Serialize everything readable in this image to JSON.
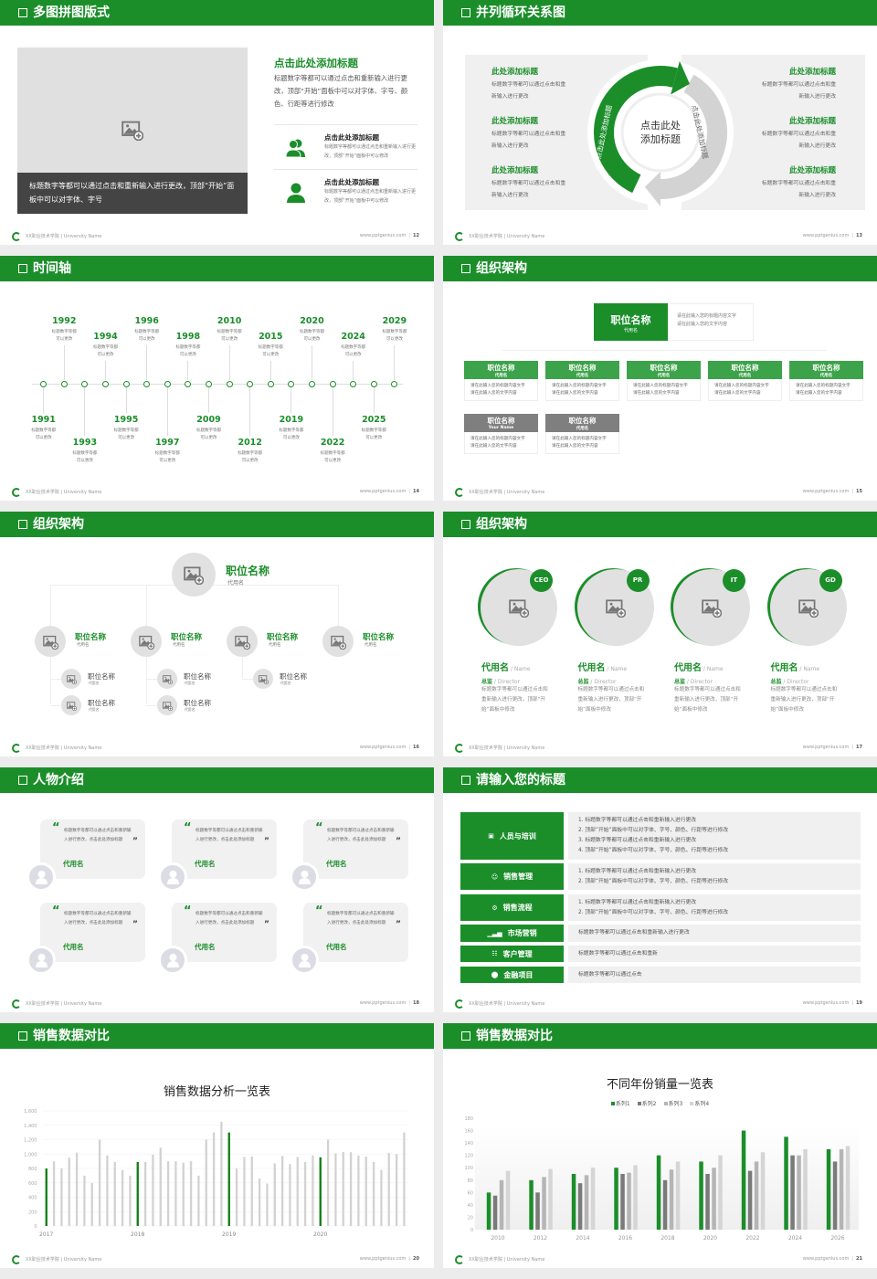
{
  "footer": {
    "school": "XX职业技术学院 | University Name",
    "site": "www.pptgenius.com"
  },
  "colors": {
    "brand_green": "#1b8e2a",
    "gray_dark": "#7a7a7a",
    "gray_mid": "#b5b5b5",
    "gray_light": "#d5d5d5"
  },
  "slides": [
    {
      "title": "多图拼图版式",
      "page": "12",
      "caption": "标题数字等都可以通过点击和重新输入进行更改，顶部“开始”面板中可以对字体、字号",
      "heading": "点击此处添加标题",
      "body": "标题数字等都可以通过点击和重新输入进行更改，顶部“开始”面板中可以对字体、字号、颜色、行距等进行修改",
      "items": [
        {
          "icon": "users-icon",
          "title": "点击此处添加标题",
          "text": "标题数字等都可以通过点击和重新输入进行更改，顶部“开始”面板中可以修改"
        },
        {
          "icon": "user-icon",
          "title": "点击此处添加标题",
          "text": "标题数字等都可以通过点击和重新输入进行更改，顶部“开始”面板中可以修改"
        }
      ]
    },
    {
      "title": "并列循环关系图",
      "page": "13",
      "center": "点击此处\n添加标题",
      "arc_left": "点击此处添加标题",
      "arc_right": "点击此处添加标题",
      "left": [
        {
          "title": "此处添加标题",
          "text": "标题数字等都可以通过点击和重\n新输入进行更改"
        },
        {
          "title": "此处添加标题",
          "text": "标题数字等都可以通过点击和重\n新输入进行更改"
        },
        {
          "title": "此处添加标题",
          "text": "标题数字等都可以通过点击和重\n新输入进行更改"
        }
      ],
      "right": [
        {
          "title": "此处添加标题",
          "text": "标题数字等都可以通过点击和重\n新输入进行更改"
        },
        {
          "title": "此处添加标题",
          "text": "标题数字等都可以通过点击和重\n新输入进行更改"
        },
        {
          "title": "此处添加标题",
          "text": "标题数字等都可以通过点击和重\n新输入进行更改"
        }
      ]
    },
    {
      "title": "时间轴",
      "page": "14",
      "events": [
        {
          "year": "1991",
          "text": "标题数字等都\n可以更改"
        },
        {
          "year": "1992",
          "text": "标题数字等都\n可以更改"
        },
        {
          "year": "1993",
          "text": "标题数字等都\n可以更改"
        },
        {
          "year": "1994",
          "text": "标题数字等都\n可以更改"
        },
        {
          "year": "1995",
          "text": "标题数字等都\n可以更改"
        },
        {
          "year": "1996",
          "text": "标题数字等都\n可以更改"
        },
        {
          "year": "1997",
          "text": "标题数字等都\n可以更改"
        },
        {
          "year": "1998",
          "text": "标题数字等都\n可以更改"
        },
        {
          "year": "2009",
          "text": "标题数字等都\n可以更改"
        },
        {
          "year": "2010",
          "text": "标题数字等都\n可以更改"
        },
        {
          "year": "2012",
          "text": "标题数字等都\n可以更改"
        },
        {
          "year": "2015",
          "text": "标题数字等都\n可以更改"
        },
        {
          "year": "2019",
          "text": "标题数字等都\n可以更改"
        },
        {
          "year": "2020",
          "text": "标题数字等都\n可以更改"
        },
        {
          "year": "2022",
          "text": "标题数字等都\n可以更改"
        },
        {
          "year": "2024",
          "text": "标题数字等都\n可以更改"
        },
        {
          "year": "2025",
          "text": "标题数字等都\n可以更改"
        },
        {
          "year": "2029",
          "text": "标题数字等都\n可以更改"
        }
      ]
    },
    {
      "title": "组织架构",
      "page": "15",
      "top": {
        "title": "职位名称",
        "sub": "代用名",
        "desc": "请在此输入您的标题内容文字\n请在此输入您的文字内容"
      },
      "row1": [
        {
          "title": "职位名称",
          "sub": "代用名",
          "desc": "请在此输入您的标题内容文字\n请在此输入您的文字内容"
        },
        {
          "title": "职位名称",
          "sub": "代用名",
          "desc": "请在此输入您的标题内容文字\n请在此输入您的文字内容"
        },
        {
          "title": "职位名称",
          "sub": "代用名",
          "desc": "请在此输入您的标题内容文字\n请在此输入您的文字内容"
        },
        {
          "title": "职位名称",
          "sub": "代用名",
          "desc": "请在此输入您的标题内容文字\n请在此输入您的文字内容"
        },
        {
          "title": "职位名称",
          "sub": "代用名",
          "desc": "请在此输入您的标题内容文字\n请在此输入您的文字内容"
        }
      ],
      "row2": [
        {
          "title": "职位名称",
          "sub": "Your Name",
          "desc": "请在此输入您的标题内容文字\n请在此输入您的文字内容"
        },
        {
          "title": "职位名称",
          "sub": "代用名",
          "desc": "请在此输入您的标题内容文字\n请在此输入您的文字内容"
        }
      ]
    },
    {
      "title": "组织架构",
      "page": "16",
      "top": {
        "title": "职位名称",
        "sub": "代用名"
      },
      "branches": [
        {
          "title": "职位名称",
          "sub": "代用名",
          "children": [
            {
              "title": "职位名称",
              "sub": "代用名"
            },
            {
              "title": "职位名称",
              "sub": "代用名"
            }
          ]
        },
        {
          "title": "职位名称",
          "sub": "代用名",
          "children": [
            {
              "title": "职位名称",
              "sub": "代用名"
            },
            {
              "title": "职位名称",
              "sub": "代用名"
            }
          ]
        },
        {
          "title": "职位名称",
          "sub": "代用名",
          "children": [
            {
              "title": "职位名称",
              "sub": "代用名"
            }
          ]
        },
        {
          "title": "职位名称",
          "sub": "代用名",
          "children": []
        }
      ]
    },
    {
      "title": "组织架构",
      "page": "17",
      "cards": [
        {
          "badge": "CEO",
          "name": "代用名",
          "name_en": " / Name",
          "role": "总监",
          "role_en": " /  Director",
          "desc": "标题数字等都可以通过点击和重新输入进行更改，顶部“开始”面板中修改"
        },
        {
          "badge": "PR",
          "name": "代用名",
          "name_en": " / Name",
          "role": "总监",
          "role_en": " /  Director",
          "desc": "标题数字等都可以通过点击和重新输入进行更改，顶部“开始”面板中修改"
        },
        {
          "badge": "IT",
          "name": "代用名",
          "name_en": " / Name",
          "role": "总监",
          "role_en": " /  Director",
          "desc": "标题数字等都可以通过点击和重新输入进行更改，顶部“开始”面板中修改"
        },
        {
          "badge": "GD",
          "name": "代用名",
          "name_en": " / Name",
          "role": "总监",
          "role_en": " /  Director",
          "desc": "标题数字等都可以通过点击和重新输入进行更改，顶部“开始”面板中修改"
        }
      ]
    },
    {
      "title": "人物介绍",
      "page": "18",
      "quotes": [
        {
          "text": "标题数字等都可以通过点击和重新输入进行更改，点击此处添加标题",
          "name": "代用名"
        },
        {
          "text": "标题数字等都可以通过点击和重新输入进行更改，点击此处添加标题",
          "name": "代用名"
        },
        {
          "text": "标题数字等都可以通过点击和重新输入进行更改，点击此处添加标题",
          "name": "代用名"
        },
        {
          "text": "标题数字等都可以通过点击和重新输入进行更改，点击此处添加标题",
          "name": "代用名"
        },
        {
          "text": "标题数字等都可以通过点击和重新输入进行更改，点击此处添加标题",
          "name": "代用名"
        },
        {
          "text": "标题数字等都可以通过点击和重新输入进行更改，点击此处添加标题",
          "name": "代用名"
        }
      ]
    },
    {
      "title": "请输入您的标题",
      "page": "19",
      "rows": [
        {
          "icon": "training-icon",
          "label": "人员与培训",
          "lines": [
            "1.   标题数字等都可以通过点击和重新输入进行更改",
            "2.   顶部“开始”面板中可以对字体、字号、颜色、行距等进行修改",
            "3.   标题数字等都可以通过点击和重新输入进行更改",
            "4.   顶部“开始”面板中可以对字体、字号、颜色、行距等进行修改"
          ]
        },
        {
          "icon": "sales-manage-icon",
          "label": "销售管理",
          "lines": [
            "1.   标题数字等都可以通过点击和重新输入进行更改",
            "2.   顶部“开始”面板中可以对字体、字号、颜色、行距等进行修改"
          ]
        },
        {
          "icon": "process-icon",
          "label": "销售流程",
          "lines": [
            "1.   标题数字等都可以通过点击和重新输入进行更改",
            "2.   顶部“开始”面板中可以对字体、字号、颜色、行距等进行修改"
          ]
        },
        {
          "icon": "bar-chart-icon",
          "label": "市场营销",
          "lines": [
            "标题数字等都可以通过点击和重新输入进行更改"
          ]
        },
        {
          "icon": "customers-icon",
          "label": "客户管理",
          "lines": [
            "标题数字等都可以通过点击和重新"
          ]
        },
        {
          "icon": "finance-icon",
          "label": "金融项目",
          "lines": [
            "标题数字等都可以通过点击"
          ]
        }
      ]
    },
    {
      "title": "销售数据对比",
      "page": "20"
    },
    {
      "title": "销售数据对比",
      "page": "21"
    }
  ],
  "chart_data": [
    {
      "type": "bar",
      "title": "销售数据分析一览表",
      "ylim": [
        0,
        1600
      ],
      "yticks": [
        "0",
        "200",
        "400",
        "600",
        "800",
        "1,000",
        "1,200",
        "1,400",
        "1,600"
      ],
      "xtick_labels": [
        "2017",
        "2018",
        "2019",
        "2020"
      ],
      "grid": true,
      "highlight": "first bar of each year in green, others gray",
      "values": [
        800,
        900,
        800,
        950,
        1020,
        700,
        600,
        1200,
        980,
        890,
        780,
        700,
        890,
        890,
        990,
        1090,
        900,
        900,
        880,
        900,
        700,
        1200,
        1300,
        1450,
        1300,
        800,
        960,
        965,
        660,
        590,
        870,
        975,
        860,
        960,
        890,
        980,
        955,
        1200,
        1010,
        1030,
        1025,
        980,
        965,
        890,
        780,
        1015,
        1000,
        1300
      ]
    },
    {
      "type": "bar",
      "title": "不同年份销量一览表",
      "ylim": [
        0,
        180
      ],
      "yticks": [
        "0",
        "20",
        "40",
        "60",
        "80",
        "100",
        "120",
        "140",
        "160",
        "180"
      ],
      "categories": [
        "2010",
        "2012",
        "2014",
        "2016",
        "2018",
        "2020",
        "2022",
        "2024",
        "2026"
      ],
      "legend": "top",
      "series": [
        {
          "name": "系列1",
          "color": "#1b8e2a",
          "values": [
            60,
            80,
            90,
            100,
            120,
            110,
            160,
            150,
            130
          ]
        },
        {
          "name": "系列2",
          "color": "#7a7a7a",
          "values": [
            55,
            60,
            75,
            90,
            80,
            90,
            95,
            120,
            110
          ]
        },
        {
          "name": "系列3",
          "color": "#b5b5b5",
          "values": [
            80,
            85,
            88,
            92,
            97,
            100,
            110,
            120,
            130
          ]
        },
        {
          "name": "系列4",
          "color": "#d5d5d5",
          "values": [
            95,
            98,
            100,
            104,
            110,
            120,
            125,
            130,
            135
          ]
        }
      ]
    }
  ]
}
